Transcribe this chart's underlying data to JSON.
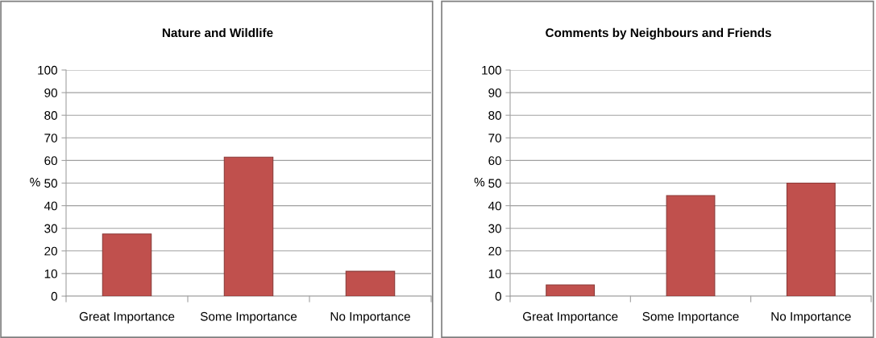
{
  "chart_data": [
    {
      "type": "bar",
      "title": "Nature and Wildlife",
      "ylabel": "%",
      "categories": [
        "Great Importance",
        "Some Importance",
        "No Importance"
      ],
      "values": [
        27.5,
        61.5,
        11
      ],
      "color": "#c0504d",
      "ylim": [
        0,
        100
      ],
      "yticks": [
        0,
        10,
        20,
        30,
        40,
        50,
        60,
        70,
        80,
        90,
        100
      ],
      "grid": "y",
      "legend": false
    },
    {
      "type": "bar",
      "title": "Comments by Neighbours and Friends",
      "ylabel": "%",
      "categories": [
        "Great Importance",
        "Some Importance",
        "No Importance"
      ],
      "values": [
        5,
        44.5,
        50
      ],
      "color": "#c0504d",
      "ylim": [
        0,
        100
      ],
      "yticks": [
        0,
        10,
        20,
        30,
        40,
        50,
        60,
        70,
        80,
        90,
        100
      ],
      "grid": "y",
      "legend": false
    }
  ]
}
